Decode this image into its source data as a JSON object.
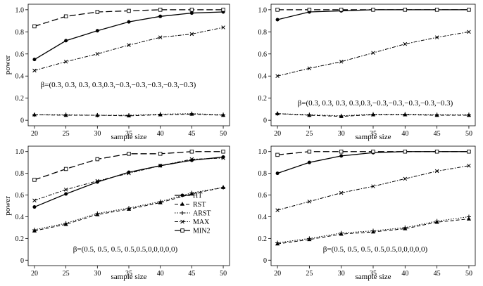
{
  "chart_data": [
    {
      "type": "line",
      "panel": "top-left",
      "x": [
        20,
        25,
        30,
        35,
        40,
        45,
        50
      ],
      "xlabel": "sample size",
      "ylabel": "power",
      "xlim": [
        19,
        51
      ],
      "ylim": [
        -0.05,
        1.05
      ],
      "xticks": [
        "20",
        "25",
        "30",
        "35",
        "40",
        "45",
        "50"
      ],
      "yticks": [
        "0",
        "0.2",
        "0.4",
        "0.6",
        "0.8",
        "1.0"
      ],
      "annotation": "β=(0.3, 0.3, 0.3, 0.3,0.3,−0.3,−0.3,−0.3,−0.3,−0.3)",
      "legend": false,
      "series": [
        {
          "name": "HT",
          "values": [
            0.55,
            0.72,
            0.81,
            0.89,
            0.94,
            0.97,
            0.98
          ]
        },
        {
          "name": "RST",
          "values": [
            0.05,
            0.045,
            0.045,
            0.04,
            0.05,
            0.055,
            0.045
          ]
        },
        {
          "name": "ARST",
          "values": [
            0.05,
            0.05,
            0.045,
            0.045,
            0.055,
            0.06,
            0.05
          ]
        },
        {
          "name": "MAX",
          "values": [
            0.45,
            0.53,
            0.6,
            0.68,
            0.75,
            0.78,
            0.84
          ]
        },
        {
          "name": "MIN2",
          "values": [
            0.85,
            0.94,
            0.98,
            0.99,
            1.0,
            1.0,
            1.0
          ]
        }
      ]
    },
    {
      "type": "line",
      "panel": "top-right",
      "x": [
        20,
        25,
        30,
        35,
        40,
        45,
        50
      ],
      "xlabel": "sample size",
      "ylabel": "",
      "xlim": [
        19,
        51
      ],
      "ylim": [
        -0.05,
        1.05
      ],
      "xticks": [
        "20",
        "25",
        "30",
        "35",
        "40",
        "45",
        "50"
      ],
      "yticks": [
        "0",
        "0.2",
        "0.4",
        "0.6",
        "0.8",
        "1.0"
      ],
      "annotation": "β=(0.3, 0.3, 0.3, 0.3,0.3,−0.3,−0.3,−0.3,−0.3,−0.3)",
      "legend": false,
      "series": [
        {
          "name": "HT",
          "values": [
            0.91,
            0.98,
            0.99,
            1.0,
            1.0,
            1.0,
            1.0
          ]
        },
        {
          "name": "RST",
          "values": [
            0.06,
            0.045,
            0.035,
            0.05,
            0.05,
            0.045,
            0.045
          ]
        },
        {
          "name": "ARST",
          "values": [
            0.06,
            0.05,
            0.04,
            0.055,
            0.055,
            0.05,
            0.05
          ]
        },
        {
          "name": "MAX",
          "values": [
            0.4,
            0.47,
            0.53,
            0.61,
            0.69,
            0.75,
            0.8
          ]
        },
        {
          "name": "MIN2",
          "values": [
            1.0,
            1.0,
            1.0,
            1.0,
            1.0,
            1.0,
            1.0
          ]
        }
      ]
    },
    {
      "type": "line",
      "panel": "bottom-left",
      "x": [
        20,
        25,
        30,
        35,
        40,
        45,
        50
      ],
      "xlabel": "sample size",
      "ylabel": "power",
      "xlim": [
        19,
        51
      ],
      "ylim": [
        -0.05,
        1.05
      ],
      "xticks": [
        "20",
        "25",
        "30",
        "35",
        "40",
        "45",
        "50"
      ],
      "yticks": [
        "0",
        "0.2",
        "0.4",
        "0.6",
        "0.8",
        "1.0"
      ],
      "annotation": "β=(0.5, 0.5, 0.5, 0.5,0.5,0,0,0,0,0)",
      "legend": true,
      "series": [
        {
          "name": "HT",
          "values": [
            0.49,
            0.61,
            0.72,
            0.81,
            0.87,
            0.92,
            0.95
          ]
        },
        {
          "name": "RST",
          "values": [
            0.27,
            0.33,
            0.42,
            0.47,
            0.53,
            0.61,
            0.67
          ]
        },
        {
          "name": "ARST",
          "values": [
            0.28,
            0.34,
            0.43,
            0.48,
            0.54,
            0.62,
            0.67
          ]
        },
        {
          "name": "MAX",
          "values": [
            0.55,
            0.65,
            0.73,
            0.8,
            0.87,
            0.93,
            0.94
          ]
        },
        {
          "name": "MIN2",
          "values": [
            0.74,
            0.84,
            0.93,
            0.98,
            0.98,
            1.0,
            1.0
          ]
        }
      ]
    },
    {
      "type": "line",
      "panel": "bottom-right",
      "x": [
        20,
        25,
        30,
        35,
        40,
        45,
        50
      ],
      "xlabel": "sample size",
      "ylabel": "",
      "xlim": [
        19,
        51
      ],
      "ylim": [
        -0.05,
        1.05
      ],
      "xticks": [
        "20",
        "25",
        "30",
        "35",
        "40",
        "45",
        "50"
      ],
      "yticks": [
        "0",
        "0.2",
        "0.4",
        "0.6",
        "0.8",
        "1.0"
      ],
      "annotation": "β=(0.5, 0.5, 0.5, 0.5,0.5,0,0,0,0,0)",
      "legend": false,
      "series": [
        {
          "name": "HT",
          "values": [
            0.8,
            0.9,
            0.96,
            0.99,
            1.0,
            1.0,
            1.0
          ]
        },
        {
          "name": "RST",
          "values": [
            0.15,
            0.19,
            0.24,
            0.26,
            0.29,
            0.35,
            0.38
          ]
        },
        {
          "name": "ARST",
          "values": [
            0.16,
            0.2,
            0.25,
            0.27,
            0.3,
            0.36,
            0.4
          ]
        },
        {
          "name": "MAX",
          "values": [
            0.46,
            0.54,
            0.62,
            0.68,
            0.75,
            0.82,
            0.87
          ]
        },
        {
          "name": "MIN2",
          "values": [
            0.97,
            1.0,
            1.0,
            1.0,
            1.0,
            1.0,
            1.0
          ]
        }
      ]
    }
  ],
  "legend": {
    "entries": [
      "HT",
      "RST",
      "ARST",
      "MAX",
      "MIN2"
    ]
  },
  "styles": {
    "HT": {
      "dash": "",
      "marker": "circle",
      "width": 1.3
    },
    "RST": {
      "dash": "5,3",
      "marker": "triangle",
      "width": 1
    },
    "ARST": {
      "dash": "1.5,2",
      "marker": "plus",
      "width": 1
    },
    "MAX": {
      "dash": "5,2,1.5,2",
      "marker": "cross",
      "width": 1
    },
    "MIN2": {
      "dash": "9,4",
      "marker": "square",
      "width": 1.3
    }
  },
  "colors": {
    "line": "#000000",
    "axis": "#000000",
    "background": "#ffffff"
  }
}
